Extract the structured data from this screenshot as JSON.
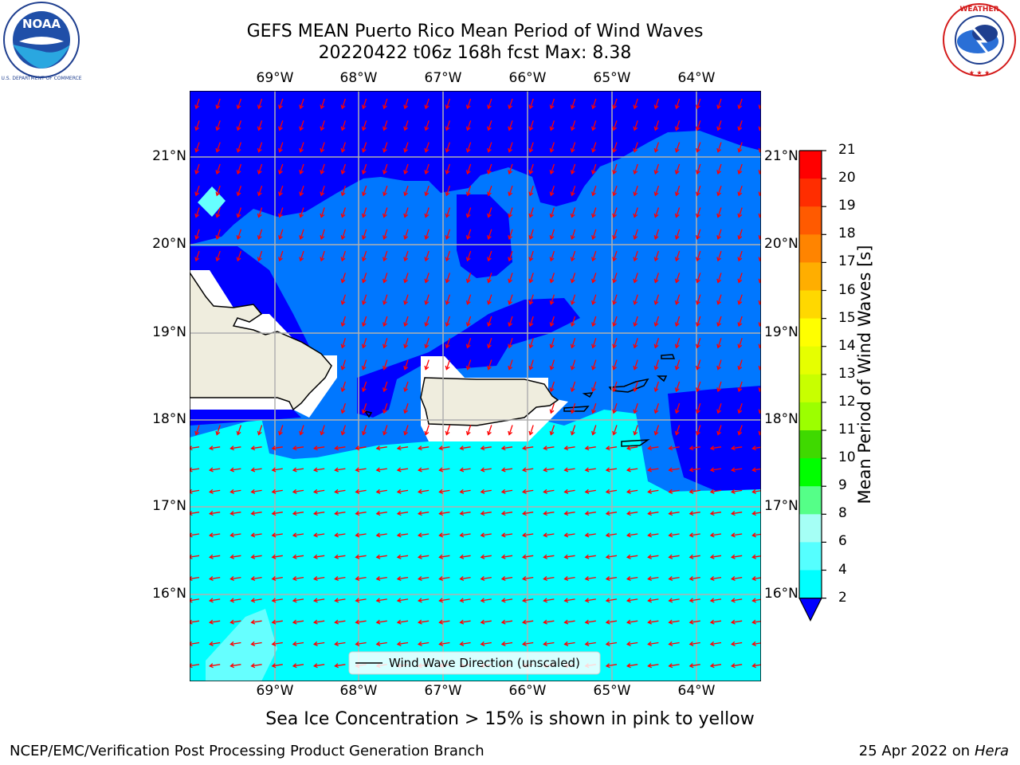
{
  "title": {
    "line1": "GEFS MEAN Puerto Rico Mean Period of Wind Waves",
    "line2": "20220422 t06z 168h fcst   Max: 8.38"
  },
  "map": {
    "lon_labels": [
      "69°W",
      "68°W",
      "67°W",
      "66°W",
      "65°W",
      "64°W"
    ],
    "lat_labels": [
      "21°N",
      "20°N",
      "19°N",
      "18°N",
      "17°N",
      "16°N"
    ],
    "legend_label": "Wind Wave Direction (unscaled)",
    "arrow_color": "#ff0000",
    "land_color": "#efedde",
    "fill_colors": {
      "band_2_4": "#0000ff",
      "band_4_6": "#0077ff",
      "band_6_8": "#00ffff",
      "band_8_9": "#66ffff"
    }
  },
  "colorbar": {
    "label": "Mean Period of Wind Waves [s]",
    "ticks": [
      "21",
      "20",
      "19",
      "18",
      "17",
      "16",
      "15",
      "14",
      "13",
      "12",
      "11",
      "10",
      "9",
      "8",
      "6",
      "4",
      "2"
    ],
    "colors": [
      "#ff0000",
      "#ff2d00",
      "#ff5a00",
      "#ff8400",
      "#ffae00",
      "#ffd800",
      "#ffff00",
      "#e6ff00",
      "#c8ff00",
      "#9cff00",
      "#3fd900",
      "#00ff00",
      "#55ff88",
      "#a5fff5",
      "#55ffff",
      "#00ffff",
      "#0080ff"
    ],
    "extend_color": "#0000ff"
  },
  "caption": "Sea Ice Concentration > 15% is shown in pink to yellow",
  "footer": {
    "left": "NCEP/EMC/Verification Post Processing Product Generation Branch",
    "date": "25 Apr 2022 on ",
    "machine": "Hera"
  },
  "logos": {
    "noaa": "NOAA",
    "nws_text": "NATIONAL WEATHER SERVICE"
  }
}
